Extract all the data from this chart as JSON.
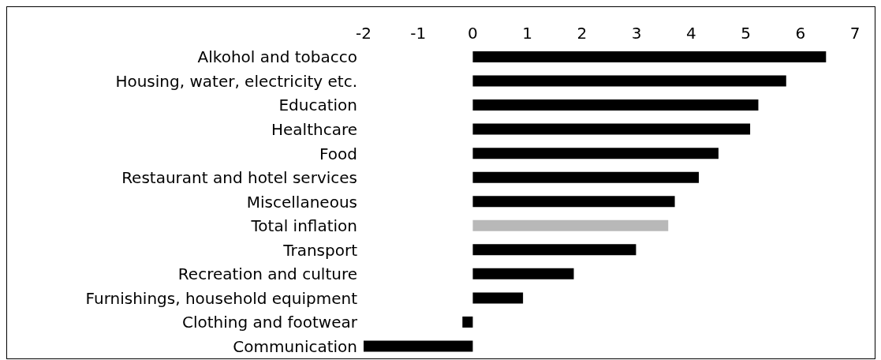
{
  "chart_data": {
    "type": "bar",
    "orientation": "horizontal",
    "categories": [
      "Alkohol and tobacco",
      "Housing, water, electricity etc.",
      "Education",
      "Healthcare",
      "Food",
      "Restaurant and hotel services",
      "Miscellaneous",
      "Total inflation",
      "Transport",
      "Recreation and culture",
      "Furnishings, household equipment",
      "Clothing and footwear",
      "Communication"
    ],
    "values": [
      6.47,
      5.74,
      5.23,
      5.08,
      4.5,
      4.14,
      3.7,
      3.58,
      2.99,
      1.85,
      0.92,
      -0.19,
      -2.0
    ],
    "colors": [
      "#000000",
      "#000000",
      "#000000",
      "#000000",
      "#000000",
      "#000000",
      "#000000",
      "#b8b8b8",
      "#000000",
      "#000000",
      "#000000",
      "#000000",
      "#000000"
    ],
    "xlim": [
      -2,
      7
    ],
    "xticks": [
      -2,
      -1,
      0,
      1,
      2,
      3,
      4,
      5,
      6,
      7
    ],
    "grid": false,
    "legend": false
  }
}
